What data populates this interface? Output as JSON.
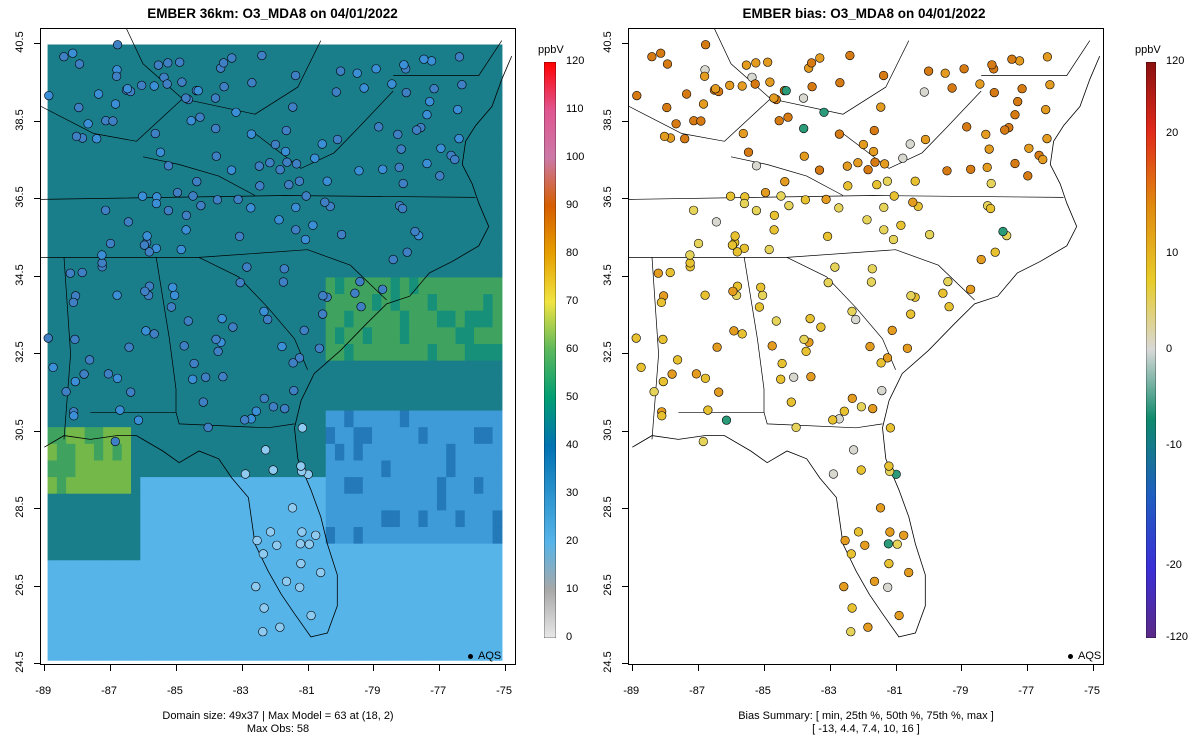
{
  "left": {
    "title": "EMBER 36km: O3_MDA8 on 04/01/2022",
    "footer_line1": "Domain size: 49x37 | Max Model = 63 at (18, 2)",
    "footer_line2": "Max Obs: 58",
    "legend_unit": "ppbV",
    "legend_ticks": [
      "0",
      "10",
      "20",
      "30",
      "40",
      "50",
      "60",
      "70",
      "80",
      "90",
      "100",
      "110",
      "120"
    ],
    "aqs_label": "AQS"
  },
  "right": {
    "title": "EMBER bias: O3_MDA8 on 04/01/2022",
    "footer_line1": "Bias Summary: [ min, 25th %, 50th %, 75th %, max ]",
    "footer_line2": "[ -13,   4.4,   7.4,   10,   16 ]",
    "legend_unit": "ppbV",
    "legend_ticks": [
      "-120",
      "-20",
      "-10",
      "0",
      "10",
      "20",
      "120"
    ],
    "aqs_label": "AQS"
  },
  "axes": {
    "x_ticks": [
      "-89",
      "-87",
      "-85",
      "-83",
      "-81",
      "-79",
      "-77",
      "-75"
    ],
    "y_ticks": [
      "24.5",
      "26.5",
      "28.5",
      "30.5",
      "32.5",
      "34.5",
      "36.5",
      "38.5",
      "40.5"
    ]
  },
  "chart_data": [
    {
      "type": "heatmap",
      "title": "EMBER 36km: O3_MDA8 on 04/01/2022",
      "xlim": [
        -89.1,
        -74.7
      ],
      "ylim": [
        24.5,
        40.9
      ],
      "colorbar": {
        "unit": "ppbV",
        "range": [
          0,
          120
        ]
      },
      "stats": {
        "max_model": 63,
        "max_model_cell": [
          18,
          2
        ],
        "max_obs": 58,
        "domain_size": "49x37"
      }
    },
    {
      "type": "scatter",
      "title": "EMBER bias: O3_MDA8 on 04/01/2022",
      "xlim": [
        -89.1,
        -74.7
      ],
      "ylim": [
        24.5,
        40.9
      ],
      "colorbar": {
        "unit": "ppbV",
        "ticks": [
          -120,
          -20,
          -10,
          0,
          10,
          20,
          120
        ]
      },
      "summary": {
        "min": -13,
        "p25": 4.4,
        "p50": 7.4,
        "p75": 10,
        "max": 16
      }
    }
  ]
}
